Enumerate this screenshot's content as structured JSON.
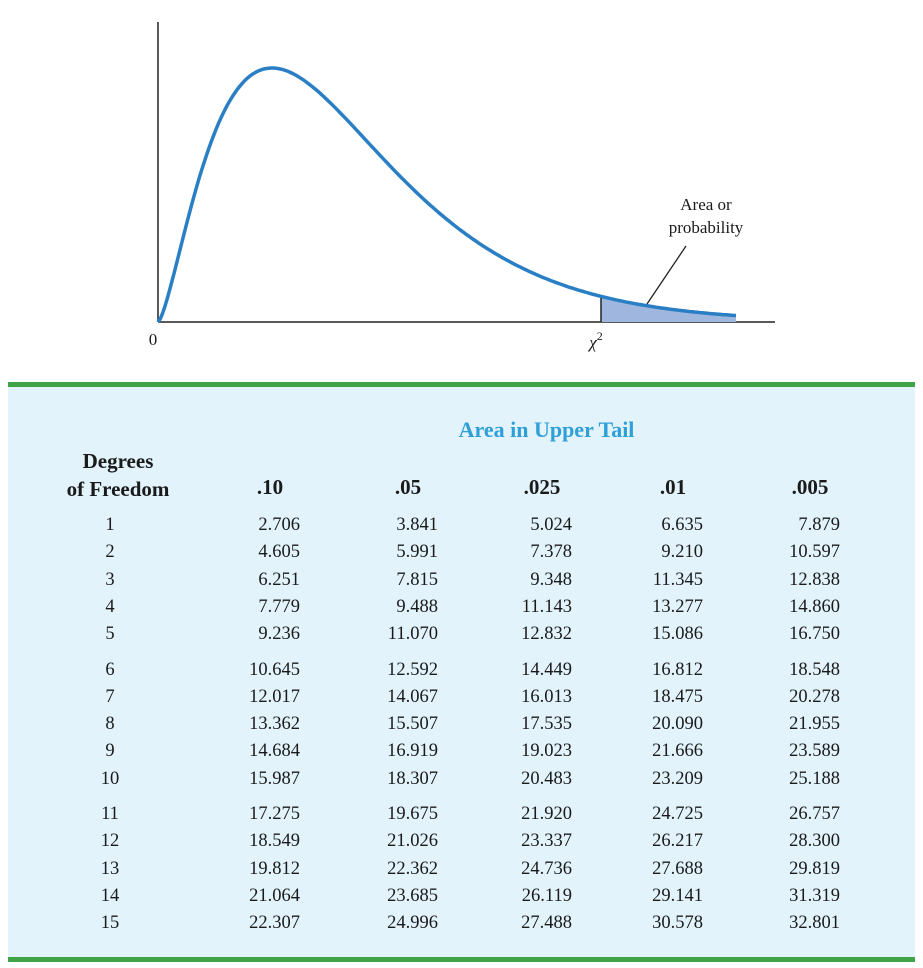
{
  "figure": {
    "origin_label": "0",
    "chi_label": "χ",
    "chi_superscript": "2",
    "annotation_line1": "Area or",
    "annotation_line2": "probability",
    "curve_color": "#2a7fc4",
    "shade_color": "#9fb6de"
  },
  "table": {
    "title": "Area in Upper Tail",
    "dof_header_line1": "Degrees",
    "dof_header_line2": "of Freedom",
    "columns": [
      ".10",
      ".05",
      ".025",
      ".01",
      ".005"
    ],
    "rows": [
      {
        "df": "1",
        "values": [
          "2.706",
          "3.841",
          "5.024",
          "6.635",
          "7.879"
        ]
      },
      {
        "df": "2",
        "values": [
          "4.605",
          "5.991",
          "7.378",
          "9.210",
          "10.597"
        ]
      },
      {
        "df": "3",
        "values": [
          "6.251",
          "7.815",
          "9.348",
          "11.345",
          "12.838"
        ]
      },
      {
        "df": "4",
        "values": [
          "7.779",
          "9.488",
          "11.143",
          "13.277",
          "14.860"
        ]
      },
      {
        "df": "5",
        "values": [
          "9.236",
          "11.070",
          "12.832",
          "15.086",
          "16.750"
        ]
      },
      {
        "df": "6",
        "values": [
          "10.645",
          "12.592",
          "14.449",
          "16.812",
          "18.548"
        ]
      },
      {
        "df": "7",
        "values": [
          "12.017",
          "14.067",
          "16.013",
          "18.475",
          "20.278"
        ]
      },
      {
        "df": "8",
        "values": [
          "13.362",
          "15.507",
          "17.535",
          "20.090",
          "21.955"
        ]
      },
      {
        "df": "9",
        "values": [
          "14.684",
          "16.919",
          "19.023",
          "21.666",
          "23.589"
        ]
      },
      {
        "df": "10",
        "values": [
          "15.987",
          "18.307",
          "20.483",
          "23.209",
          "25.188"
        ]
      },
      {
        "df": "11",
        "values": [
          "17.275",
          "19.675",
          "21.920",
          "24.725",
          "26.757"
        ]
      },
      {
        "df": "12",
        "values": [
          "18.549",
          "21.026",
          "23.337",
          "26.217",
          "28.300"
        ]
      },
      {
        "df": "13",
        "values": [
          "19.812",
          "22.362",
          "24.736",
          "27.688",
          "29.819"
        ]
      },
      {
        "df": "14",
        "values": [
          "21.064",
          "23.685",
          "26.119",
          "29.141",
          "31.319"
        ]
      },
      {
        "df": "15",
        "values": [
          "22.307",
          "24.996",
          "27.488",
          "30.578",
          "32.801"
        ]
      }
    ],
    "border_color": "#3fa447",
    "background_color": "#e2f3fb",
    "title_color": "#2f9fd8"
  }
}
